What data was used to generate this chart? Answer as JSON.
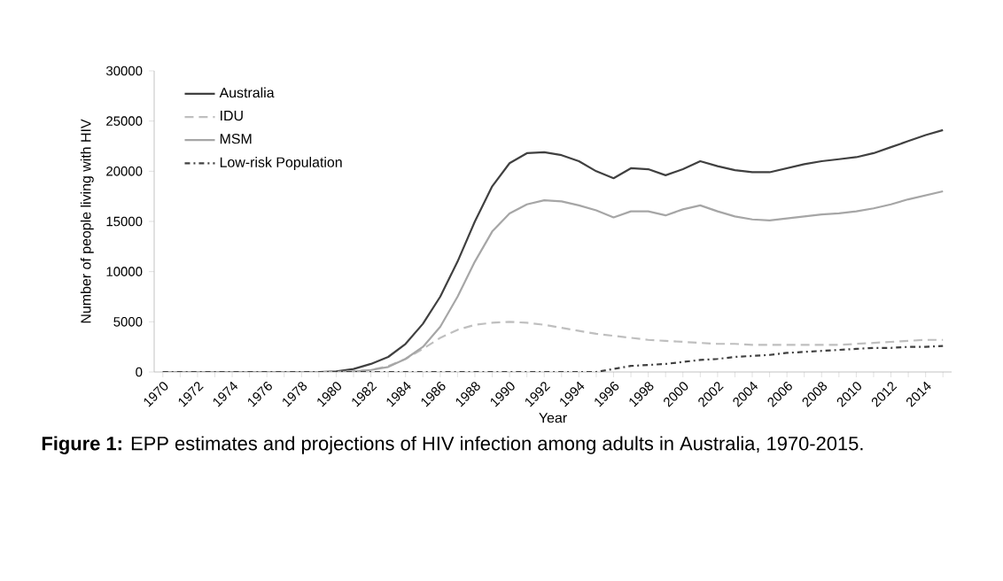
{
  "chart_data": {
    "type": "line",
    "xlabel": "Year",
    "ylabel": "Number of people living with HIV",
    "categories": [
      "1970",
      null,
      "1972",
      null,
      "1974",
      null,
      "1976",
      null,
      "1978",
      null,
      "1980",
      null,
      "1982",
      null,
      "1984",
      null,
      "1986",
      null,
      "1988",
      null,
      "1990",
      null,
      "1992",
      null,
      "1994",
      null,
      "1996",
      null,
      "1998",
      null,
      "2000",
      null,
      "2002",
      null,
      "2004",
      null,
      "2006",
      null,
      "2008",
      null,
      "2010",
      null,
      "2012",
      null,
      "2014",
      null
    ],
    "ylim": [
      0,
      30000
    ],
    "yticks": [
      0,
      5000,
      10000,
      15000,
      20000,
      25000,
      30000
    ],
    "legend": "top left",
    "marker": "none",
    "grid": false,
    "series": [
      {
        "name": "Australia",
        "color": "#404040",
        "line_style": "solid",
        "values": [
          0,
          0,
          0,
          0,
          0,
          0,
          0,
          0,
          0,
          0,
          50,
          300,
          800,
          1500,
          2800,
          4800,
          7500,
          11000,
          15000,
          18500,
          20800,
          21800,
          21900,
          21600,
          21000,
          20000,
          19300,
          20300,
          20200,
          19600,
          20200,
          21000,
          20500,
          20100,
          19900,
          19900,
          20300,
          20700,
          21000,
          21200,
          21400,
          21800,
          22400,
          23000,
          23600,
          24100
        ]
      },
      {
        "name": "IDU",
        "color": "#bfbfbf",
        "line_style": "dashed",
        "values": [
          0,
          0,
          0,
          0,
          0,
          0,
          0,
          0,
          0,
          0,
          0,
          50,
          200,
          600,
          1300,
          2300,
          3400,
          4200,
          4700,
          4900,
          5000,
          4900,
          4700,
          4400,
          4100,
          3800,
          3600,
          3400,
          3200,
          3100,
          3000,
          2900,
          2800,
          2800,
          2700,
          2700,
          2700,
          2700,
          2700,
          2700,
          2800,
          2900,
          3000,
          3100,
          3200,
          3200
        ]
      },
      {
        "name": "MSM",
        "color": "#a6a6a6",
        "line_style": "solid",
        "values": [
          0,
          0,
          0,
          0,
          0,
          0,
          0,
          0,
          0,
          0,
          0,
          50,
          200,
          500,
          1300,
          2500,
          4500,
          7500,
          11000,
          14000,
          15800,
          16700,
          17100,
          17000,
          16600,
          16100,
          15400,
          16000,
          16000,
          15600,
          16200,
          16600,
          16000,
          15500,
          15200,
          15100,
          15300,
          15500,
          15700,
          15800,
          16000,
          16300,
          16700,
          17200,
          17600,
          18000
        ]
      },
      {
        "name": "Low-risk Population",
        "color": "#404040",
        "line_style": "dashdot",
        "values": [
          0,
          0,
          0,
          0,
          0,
          0,
          0,
          0,
          0,
          0,
          0,
          0,
          0,
          0,
          0,
          0,
          0,
          0,
          0,
          0,
          0,
          0,
          0,
          0,
          0,
          0,
          300,
          600,
          700,
          800,
          1000,
          1200,
          1300,
          1500,
          1600,
          1700,
          1900,
          2000,
          2100,
          2200,
          2300,
          2400,
          2400,
          2500,
          2500,
          2600
        ]
      }
    ],
    "annotations": [
      "**Figure 1:** EPP estimates and projections of HIV infection among adults in Australia, 1970-2015."
    ]
  }
}
